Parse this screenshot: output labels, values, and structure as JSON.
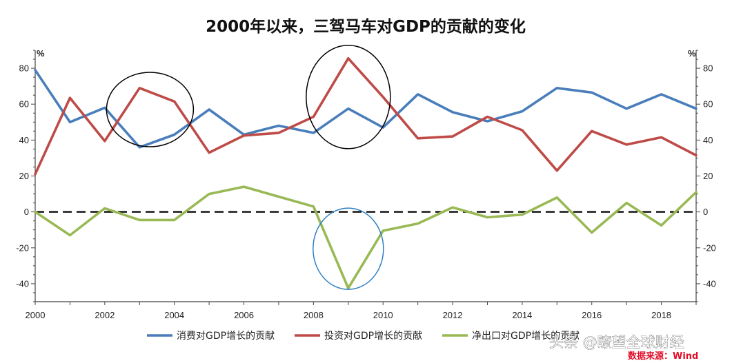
{
  "chart_data": {
    "type": "line",
    "title": "2000年以来，三驾马车对GDP的贡献的变化",
    "y_unit_left": "%",
    "y_unit_right": "%",
    "xlim": [
      2000,
      2019
    ],
    "ylim": [
      -50,
      90
    ],
    "x_ticks": [
      2000,
      2002,
      2004,
      2006,
      2008,
      2010,
      2012,
      2014,
      2016,
      2018
    ],
    "y_ticks": [
      -40,
      -20,
      0,
      20,
      40,
      60,
      80
    ],
    "x": [
      2000,
      2001,
      2002,
      2003,
      2004,
      2005,
      2006,
      2007,
      2008,
      2009,
      2010,
      2011,
      2012,
      2013,
      2014,
      2015,
      2016,
      2017,
      2018,
      2019
    ],
    "series": [
      {
        "name": "消费对GDP增长的贡献",
        "color": "#4a7ebb",
        "values": [
          79,
          50,
          58,
          36,
          43,
          57,
          43,
          48,
          44,
          57.5,
          47,
          65.5,
          55.5,
          50.5,
          56,
          69,
          66.5,
          57.5,
          65.5,
          57.5
        ]
      },
      {
        "name": "投资对GDP增长的贡献",
        "color": "#be4b48",
        "values": [
          21,
          63.5,
          39.5,
          69,
          61.5,
          33,
          42.5,
          44,
          53,
          85.5,
          64,
          41,
          42,
          53,
          45.5,
          23,
          45,
          37.5,
          41.5,
          31.5
        ]
      },
      {
        "name": "净出口对GDP增长的贡献",
        "color": "#98b954",
        "values": [
          0,
          -13,
          2,
          -4.5,
          -4.5,
          10,
          14,
          8.5,
          3,
          -42.5,
          -10.5,
          -6.5,
          2.5,
          -3,
          -1.5,
          8,
          -11.5,
          5,
          -7.5,
          11
        ]
      }
    ],
    "reference_line": 0,
    "annotations": [
      "black ellipse 2003-2004 peak",
      "black ellipse 2009 peak",
      "blue ellipse 2009 trough"
    ],
    "legend_position": "bottom",
    "grid": false
  },
  "watermark_text": "头条 @瞭望全球财经",
  "source_text": "数据来源：Wind"
}
